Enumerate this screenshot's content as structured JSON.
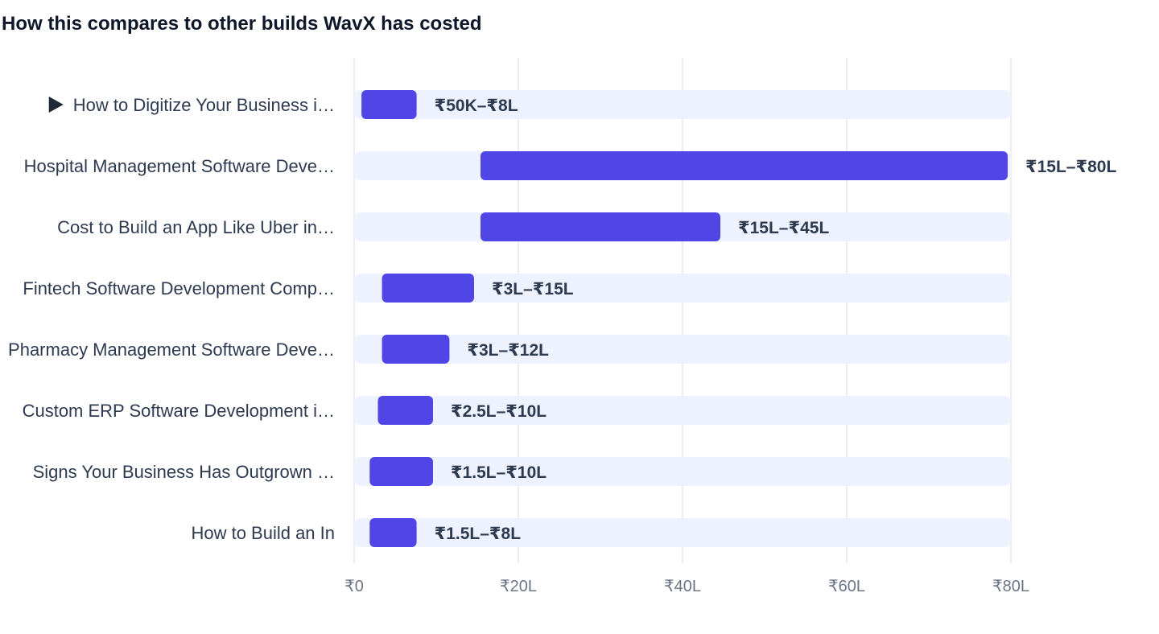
{
  "title": "How this compares to other builds WavX has costed",
  "colors": {
    "bar": "#4f46e5",
    "track": "#eef2ff",
    "grid": "#e5e7eb",
    "label": "#2d3a4f",
    "tick": "#6b7688"
  },
  "chart_data": {
    "type": "bar",
    "orientation": "horizontal-range",
    "title": "How this compares to other builds WavX has costed",
    "xlim": [
      0,
      80
    ],
    "x_unit": "₹ lakh",
    "x_ticks": [
      {
        "value": 0,
        "label": "₹0"
      },
      {
        "value": 20,
        "label": "₹20L"
      },
      {
        "value": 40,
        "label": "₹40L"
      },
      {
        "value": 60,
        "label": "₹60L"
      },
      {
        "value": 80,
        "label": "₹80L"
      }
    ],
    "grid": true,
    "rows": [
      {
        "category": "How to Digitize Your Business i…",
        "low": 0.5,
        "high": 8,
        "label": "₹50K–₹8L",
        "current": true
      },
      {
        "category": "Hospital Management Software Deve…",
        "low": 15,
        "high": 80,
        "label": "₹15L–₹80L"
      },
      {
        "category": "Cost to Build an App Like Uber in…",
        "low": 15,
        "high": 45,
        "label": "₹15L–₹45L"
      },
      {
        "category": "Fintech Software Development Comp…",
        "low": 3,
        "high": 15,
        "label": "₹3L–₹15L"
      },
      {
        "category": "Pharmacy Management Software Deve…",
        "low": 3,
        "high": 12,
        "label": "₹3L–₹12L"
      },
      {
        "category": "Custom ERP Software Development i…",
        "low": 2.5,
        "high": 10,
        "label": "₹2.5L–₹10L"
      },
      {
        "category": "Signs Your Business Has Outgrown …",
        "low": 1.5,
        "high": 10,
        "label": "₹1.5L–₹10L"
      },
      {
        "category": "How to Build an In",
        "low": 1.5,
        "high": 8,
        "label": "₹1.5L–₹8L"
      }
    ]
  }
}
